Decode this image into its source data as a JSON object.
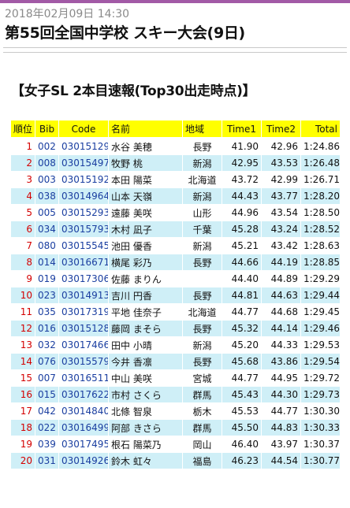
{
  "header": {
    "date": "2018年02月09日 14:30",
    "title": "第55回全国中学校 スキー大会(9日)"
  },
  "section": {
    "title": "【女子SL 2本目速報(Top30出走時点)】"
  },
  "table": {
    "headers": {
      "rank": "順位",
      "bib": "Bib",
      "code": "Code",
      "name": "名前",
      "region": "地域",
      "time1": "Time1",
      "time2": "Time2",
      "total": "Total"
    },
    "rows": [
      {
        "rank": "1",
        "bib": "002",
        "code": "03015129",
        "name": "水谷 美穂",
        "region": "長野",
        "time1": "41.90",
        "time2": "42.96",
        "total": "1:24.86"
      },
      {
        "rank": "2",
        "bib": "008",
        "code": "03015497",
        "name": "牧野 桃",
        "region": "新潟",
        "time1": "42.95",
        "time2": "43.53",
        "total": "1:26.48"
      },
      {
        "rank": "3",
        "bib": "003",
        "code": "03015192",
        "name": "本田 陽菜",
        "region": "北海道",
        "time1": "43.72",
        "time2": "42.99",
        "total": "1:26.71"
      },
      {
        "rank": "4",
        "bib": "038",
        "code": "03014964",
        "name": "山本 天嶺",
        "region": "新潟",
        "time1": "44.43",
        "time2": "43.77",
        "total": "1:28.20"
      },
      {
        "rank": "5",
        "bib": "005",
        "code": "03015293",
        "name": "遠藤 美咲",
        "region": "山形",
        "time1": "44.96",
        "time2": "43.54",
        "total": "1:28.50"
      },
      {
        "rank": "6",
        "bib": "034",
        "code": "03015793",
        "name": "木村 凪子",
        "region": "千葉",
        "time1": "45.28",
        "time2": "43.24",
        "total": "1:28.52"
      },
      {
        "rank": "7",
        "bib": "080",
        "code": "03015545",
        "name": "池田 優香",
        "region": "新潟",
        "time1": "45.21",
        "time2": "43.42",
        "total": "1:28.63"
      },
      {
        "rank": "8",
        "bib": "014",
        "code": "03016671",
        "name": "横尾 彩乃",
        "region": "長野",
        "time1": "44.66",
        "time2": "44.19",
        "total": "1:28.85"
      },
      {
        "rank": "9",
        "bib": "019",
        "code": "03017306",
        "name": "佐藤 まりん",
        "region": "",
        "time1": "44.40",
        "time2": "44.89",
        "total": "1:29.29"
      },
      {
        "rank": "10",
        "bib": "023",
        "code": "03014913",
        "name": "吉川 円香",
        "region": "長野",
        "time1": "44.81",
        "time2": "44.63",
        "total": "1:29.44"
      },
      {
        "rank": "11",
        "bib": "035",
        "code": "03017319",
        "name": "平地 佳奈子",
        "region": "北海道",
        "time1": "44.77",
        "time2": "44.68",
        "total": "1:29.45"
      },
      {
        "rank": "12",
        "bib": "016",
        "code": "03015128",
        "name": "藤岡 まそら",
        "region": "長野",
        "time1": "45.32",
        "time2": "44.14",
        "total": "1:29.46"
      },
      {
        "rank": "13",
        "bib": "032",
        "code": "03017466",
        "name": "田中 小晴",
        "region": "新潟",
        "time1": "45.20",
        "time2": "44.33",
        "total": "1:29.53"
      },
      {
        "rank": "14",
        "bib": "076",
        "code": "03015579",
        "name": "今井 香凛",
        "region": "長野",
        "time1": "45.68",
        "time2": "43.86",
        "total": "1:29.54"
      },
      {
        "rank": "15",
        "bib": "007",
        "code": "03016511",
        "name": "中山 美咲",
        "region": "宮城",
        "time1": "44.77",
        "time2": "44.95",
        "total": "1:29.72"
      },
      {
        "rank": "16",
        "bib": "015",
        "code": "03017622",
        "name": "市村 さくら",
        "region": "群馬",
        "time1": "45.43",
        "time2": "44.30",
        "total": "1:29.73"
      },
      {
        "rank": "17",
        "bib": "042",
        "code": "03014840",
        "name": "北條 智泉",
        "region": "栃木",
        "time1": "45.53",
        "time2": "44.77",
        "total": "1:30.30"
      },
      {
        "rank": "18",
        "bib": "022",
        "code": "03016499",
        "name": "阿部 きさら",
        "region": "群馬",
        "time1": "45.50",
        "time2": "44.83",
        "total": "1:30.33"
      },
      {
        "rank": "19",
        "bib": "039",
        "code": "03017495",
        "name": "根石 陽菜乃",
        "region": "岡山",
        "time1": "46.40",
        "time2": "43.97",
        "total": "1:30.37"
      },
      {
        "rank": "20",
        "bib": "031",
        "code": "03014926",
        "name": "鈴木 虹々",
        "region": "福島",
        "time1": "46.23",
        "time2": "44.54",
        "total": "1:30.77"
      }
    ]
  }
}
